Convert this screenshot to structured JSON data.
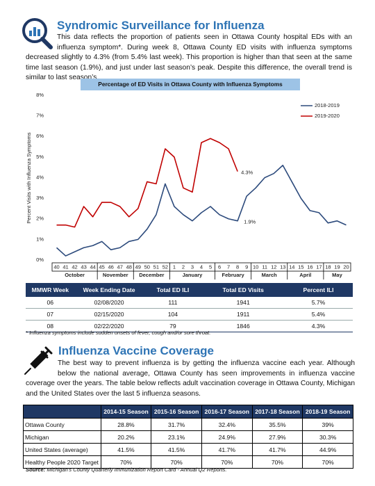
{
  "header": {
    "title": "Syndromic Surveillance for Influenza",
    "text": "This data reflects the proportion of patients seen in Ottawa County hospital EDs with an influenza symptom*. During week 8, Ottawa County ED visits with influenza symptoms decreased slightly to 4.3% (from 5.4% last week). This proportion is higher than that seen at the same time last season (1.9%), and just under last season’s peak. Despite this difference, the overall trend is similar to last season’s."
  },
  "chart_data": {
    "type": "line",
    "title": "Percentage of ED Visits in Ottawa County with Influenza Symptoms",
    "y_label": "Percent Visits with Influenza Symptoms",
    "categories": [
      "40",
      "41",
      "42",
      "43",
      "44",
      "45",
      "46",
      "47",
      "48",
      "49",
      "50",
      "51",
      "52",
      "1",
      "2",
      "3",
      "4",
      "5",
      "6",
      "7",
      "8",
      "9",
      "10",
      "11",
      "12",
      "13",
      "14",
      "15",
      "16",
      "17",
      "18",
      "19",
      "20"
    ],
    "months": [
      "October",
      "November",
      "December",
      "January",
      "February",
      "March",
      "April",
      "May"
    ],
    "series": [
      {
        "name": "2018-2019",
        "color": "#2c4a7c",
        "values": [
          0.6,
          0.2,
          0.4,
          0.6,
          0.7,
          0.9,
          0.5,
          0.6,
          0.9,
          1.0,
          1.5,
          2.2,
          3.7,
          2.6,
          2.2,
          1.9,
          2.3,
          2.6,
          2.2,
          2.0,
          1.9,
          3.1,
          3.5,
          4.0,
          4.2,
          4.6,
          3.8,
          3.0,
          2.4,
          2.3,
          1.8,
          1.9,
          1.7
        ]
      },
      {
        "name": "2019-2020",
        "color": "#c00000",
        "values": [
          1.7,
          1.7,
          1.6,
          2.6,
          2.1,
          2.8,
          2.8,
          2.6,
          2.1,
          2.5,
          3.8,
          3.7,
          5.4,
          5.0,
          3.5,
          3.3,
          5.7,
          5.9,
          5.7,
          5.4,
          4.3,
          null,
          null,
          null,
          null,
          null,
          null,
          null,
          null,
          null,
          null,
          null,
          null
        ]
      }
    ],
    "annotations": [
      "4.3%",
      "1.9%"
    ],
    "ylim": [
      0,
      8
    ],
    "yticks": [
      {
        "value": 0,
        "label": "0%"
      },
      {
        "value": 1,
        "label": "1%"
      },
      {
        "value": 2,
        "label": "2%"
      },
      {
        "value": 3,
        "label": "3%"
      },
      {
        "value": 4,
        "label": "4%"
      },
      {
        "value": 5,
        "label": "5%"
      },
      {
        "value": 6,
        "label": "6%"
      },
      {
        "value": 7,
        "label": "7%"
      },
      {
        "value": 8,
        "label": "8%"
      }
    ],
    "grid": false,
    "legend": "upper right"
  },
  "ili_table": {
    "header": [
      "MMWR Week",
      "Week Ending Date",
      "Total ED ILI",
      "Total ED Visits",
      "Percent ILI"
    ],
    "rows": [
      [
        "06",
        "02/08/2020",
        "111",
        "1941",
        "5.7%"
      ],
      [
        "07",
        "02/15/2020",
        "104",
        "1911",
        "5.4%"
      ],
      [
        "08",
        "02/22/2020",
        "79",
        "1846",
        "4.3%"
      ]
    ],
    "footnote": "* Influenza symptoms include sudden onsets of fever, cough and/or sore throat."
  },
  "vaccine": {
    "title": "Influenza Vaccine Coverage",
    "text": "The best way to prevent influenza is by getting the influenza vaccine each year. Although below the national average, Ottawa County has seen improvements in influenza vaccine coverage over the years. The table below reflects adult vaccination coverage in Ottawa County, Michigan and the United States over the last 5 influenza seasons.",
    "table": {
      "header": [
        "2014-15 Season",
        "2015-16 Season",
        "2016-17 Season",
        "2017-18 Season",
        "2018-19 Season"
      ],
      "rows": [
        [
          "Ottawa County",
          "28.8%",
          "31.7%",
          "32.4%",
          "35.5%",
          "39%"
        ],
        [
          "Michigan",
          "20.2%",
          "23.1%",
          "24.9%",
          "27.9%",
          "30.3%"
        ],
        [
          "United States (average)",
          "41.5%",
          "41.5%",
          "41.7%",
          "41.7%",
          "44.9%"
        ],
        [
          "Healthy People 2020 Target",
          "70%",
          "70%",
          "70%",
          "70%",
          "70%"
        ]
      ]
    },
    "source_label": "Source:",
    "source": "Michigan's County Quarterly Immunization Report Card - Annual Q2 Reports."
  }
}
